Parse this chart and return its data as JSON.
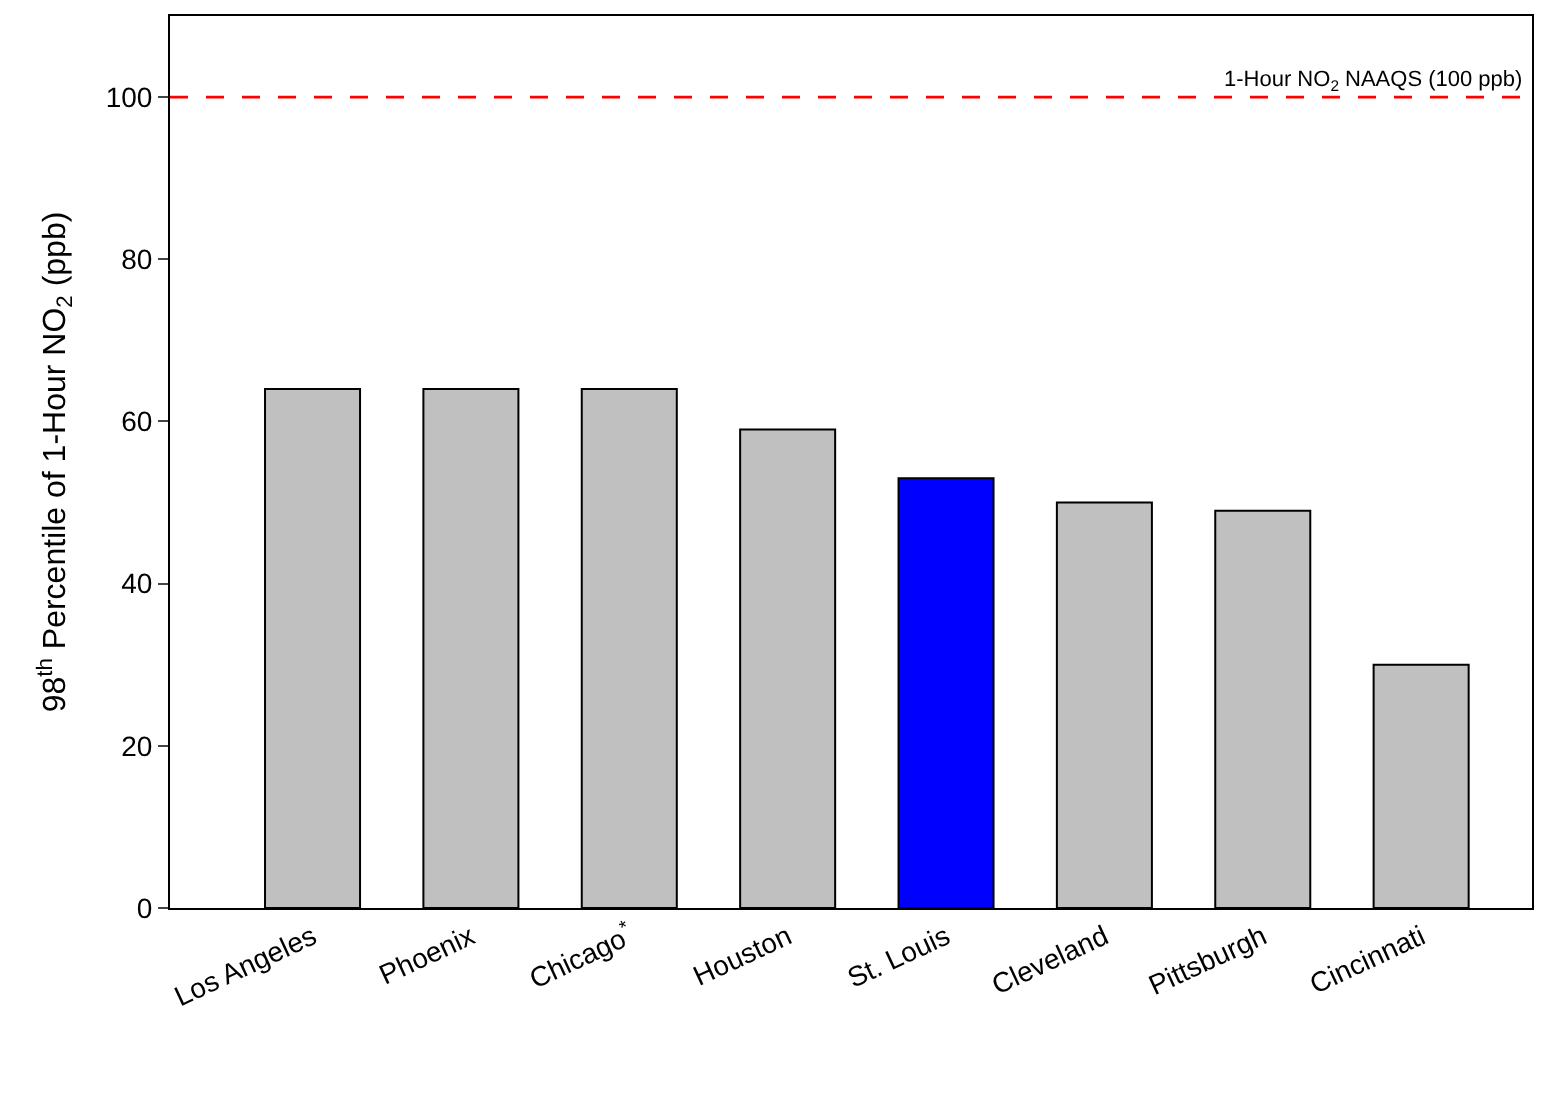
{
  "chart_data": {
    "type": "bar",
    "ylabel": "98$^{th}$ Percentile of 1-Hour NO$_{2}$ (ppb)",
    "categories": [
      "Los Angeles",
      "Phoenix",
      "Chicago$^{*}$",
      "Houston",
      "St. Louis",
      "Cleveland",
      "Pittsburgh",
      "Cincinnati"
    ],
    "values": [
      64,
      64,
      64,
      59,
      53,
      50,
      49,
      30
    ],
    "colors": [
      "#c0c0c0",
      "#c0c0c0",
      "#c0c0c0",
      "#c0c0c0",
      "#0000ff",
      "#c0c0c0",
      "#c0c0c0",
      "#c0c0c0"
    ],
    "ylim": [
      0,
      110
    ],
    "yticks": [
      0,
      20,
      40,
      60,
      80,
      100
    ],
    "ref_lines": [
      {
        "axis": "y",
        "value": 100,
        "label": "1-Hour NO$_{2}$ NAAQS (100 ppb)",
        "color": "#ff0000",
        "line_style": "dashed"
      }
    ]
  }
}
